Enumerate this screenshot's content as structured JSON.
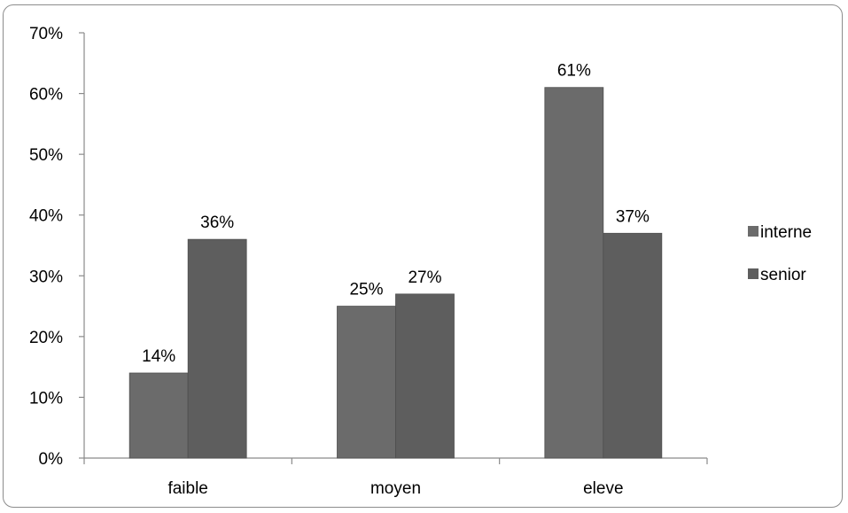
{
  "chart_data": {
    "type": "bar",
    "categories": [
      "faible",
      "moyen",
      "eleve"
    ],
    "series": [
      {
        "name": "interne",
        "values": [
          14,
          25,
          61
        ],
        "labels": [
          "14%",
          "25%",
          "61%"
        ],
        "color": "#6b6b6b"
      },
      {
        "name": "senior",
        "values": [
          36,
          27,
          37
        ],
        "labels": [
          "36%",
          "27%",
          "37%"
        ],
        "color": "#5e5e5e"
      }
    ],
    "yticks": [
      "0%",
      "10%",
      "20%",
      "30%",
      "40%",
      "50%",
      "60%",
      "70%"
    ],
    "ylim": [
      0,
      70
    ],
    "grid": false,
    "legend_position": "right",
    "title": "",
    "xlabel": "",
    "ylabel": ""
  }
}
